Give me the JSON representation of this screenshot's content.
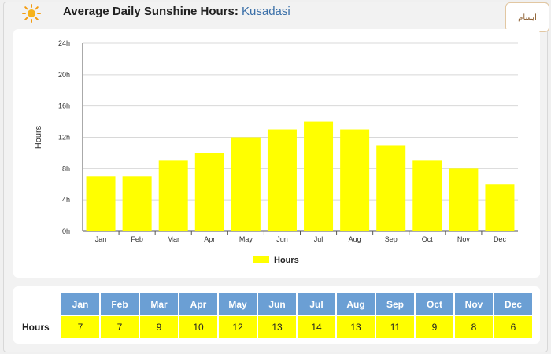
{
  "header": {
    "title": "Average Daily Sunshine Hours:",
    "city": "Kusadasi",
    "logo_text": "آیسام"
  },
  "colors": {
    "bar": "#ffff00",
    "table_header": "#6b9fd4",
    "city_text": "#3a6fa8"
  },
  "chart_data": {
    "type": "bar",
    "categories": [
      "Jan",
      "Feb",
      "Mar",
      "Apr",
      "May",
      "Jun",
      "Jul",
      "Aug",
      "Sep",
      "Oct",
      "Nov",
      "Dec"
    ],
    "series": [
      {
        "name": "Hours",
        "values": [
          7,
          7,
          9,
          10,
          12,
          13,
          14,
          13,
          11,
          9,
          8,
          6
        ]
      }
    ],
    "ylabel": "Hours",
    "ylim": [
      0,
      24
    ],
    "yticks": [
      "0h",
      "4h",
      "8h",
      "12h",
      "16h",
      "20h",
      "24h"
    ],
    "grid": true,
    "legend": "bottom-center"
  },
  "table": {
    "row_label": "Hours",
    "months": [
      "Jan",
      "Feb",
      "Mar",
      "Apr",
      "May",
      "Jun",
      "Jul",
      "Aug",
      "Sep",
      "Oct",
      "Nov",
      "Dec"
    ],
    "values": [
      "7",
      "7",
      "9",
      "10",
      "12",
      "13",
      "14",
      "13",
      "11",
      "9",
      "8",
      "6"
    ]
  }
}
